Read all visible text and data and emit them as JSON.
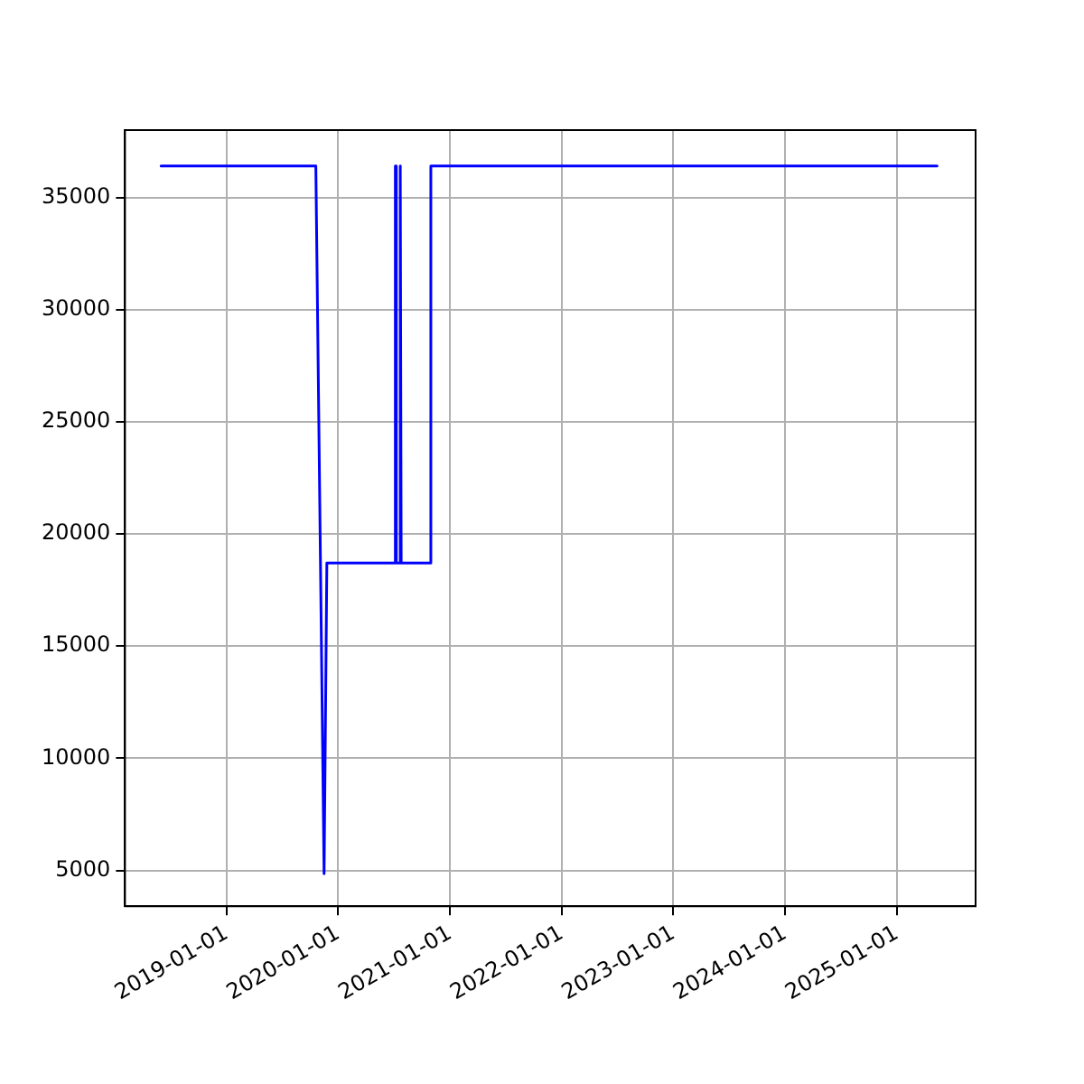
{
  "chart_data": {
    "type": "line",
    "x": [
      "2018-06-01",
      "2019-10-20",
      "2019-11-16",
      "2019-11-25",
      "2020-07-05",
      "2020-07-06",
      "2020-07-08",
      "2020-07-09",
      "2020-07-19",
      "2020-07-20",
      "2020-07-24",
      "2020-07-25",
      "2020-10-29",
      "2020-10-30",
      "2025-05-12"
    ],
    "series": [
      {
        "color": "#0000ff",
        "values": [
          36400,
          36400,
          4850,
          18700,
          18700,
          36400,
          36400,
          18700,
          18700,
          36400,
          36400,
          18700,
          18700,
          36400,
          36400
        ]
      }
    ],
    "xlim": [
      "2018-02-03",
      "2025-09-15"
    ],
    "xticks": [
      {
        "value": "2019-01-01",
        "label": "2019-01-01"
      },
      {
        "value": "2020-01-01",
        "label": "2020-01-01"
      },
      {
        "value": "2021-01-01",
        "label": "2021-01-01"
      },
      {
        "value": "2022-01-01",
        "label": "2022-01-01"
      },
      {
        "value": "2023-01-01",
        "label": "2023-01-01"
      },
      {
        "value": "2024-01-01",
        "label": "2024-01-01"
      },
      {
        "value": "2025-01-01",
        "label": "2025-01-01"
      }
    ],
    "ylim": [
      3400,
      38000
    ],
    "yticks": [
      5000,
      10000,
      15000,
      20000,
      25000,
      30000,
      35000
    ],
    "grid": true,
    "legend": false,
    "marker": "none",
    "line_style": "solid"
  }
}
